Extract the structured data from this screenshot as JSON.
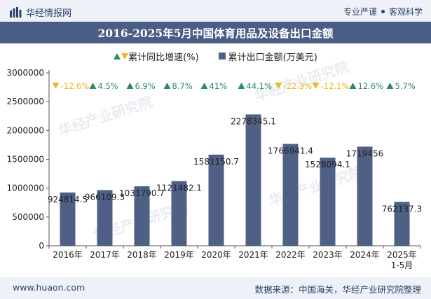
{
  "header": {
    "brand": "华经情报网",
    "tag1": "专业严谨",
    "tag2": "客观科学"
  },
  "title": "2016-2025年5月中国体育用品及设备出口金额",
  "legend": {
    "growth": "累计同比增速(%)",
    "amount": "累计出口金额(万美元)"
  },
  "footer": {
    "website": "www.huaon.com",
    "source": "数据来源：中国海关，华经产业研究院整理"
  },
  "watermark": "华经产业研究院",
  "colors": {
    "bar": "#4f5f86",
    "up": "#2d8a63",
    "down": "#f2b51d",
    "title_bg": "#4a5d86"
  },
  "chart_data": {
    "type": "bar",
    "title": "2016-2025年5月中国体育用品及设备出口金额",
    "categories": [
      "2016年",
      "2017年",
      "2018年",
      "2019年",
      "2020年",
      "2021年",
      "2022年",
      "2023年",
      "2024年",
      "2025年\n1-5月"
    ],
    "series": [
      {
        "name": "累计出口金额(万美元)",
        "values": [
          924814.5,
          966109.3,
          1031790.7,
          1121482.1,
          1581150.7,
          2278345.1,
          1766941.4,
          1528094.1,
          1719456,
          762137.3
        ],
        "labels": [
          "924814.5",
          "966109.3",
          "1031790.7",
          "1121482.1",
          "1581150.7",
          "2278345.1",
          "1766941.4",
          "1528094.1",
          "1719456",
          "762137.3"
        ]
      },
      {
        "name": "累计同比增速(%)",
        "values": [
          -12.6,
          4.5,
          6.9,
          8.7,
          41,
          44.1,
          -22.3,
          -12.1,
          12.6,
          5.7
        ],
        "labels": [
          "-12.6%",
          "4.5%",
          "6.9%",
          "8.7%",
          "41%",
          "44.1%",
          "-22.3%",
          "-12.1%",
          "12.6%",
          "5.7%"
        ]
      }
    ],
    "yticks": [
      "0",
      "500000",
      "1000000",
      "1500000",
      "2000000",
      "2500000",
      "3000000"
    ],
    "ylim": [
      0,
      3000000
    ],
    "grid": false
  }
}
